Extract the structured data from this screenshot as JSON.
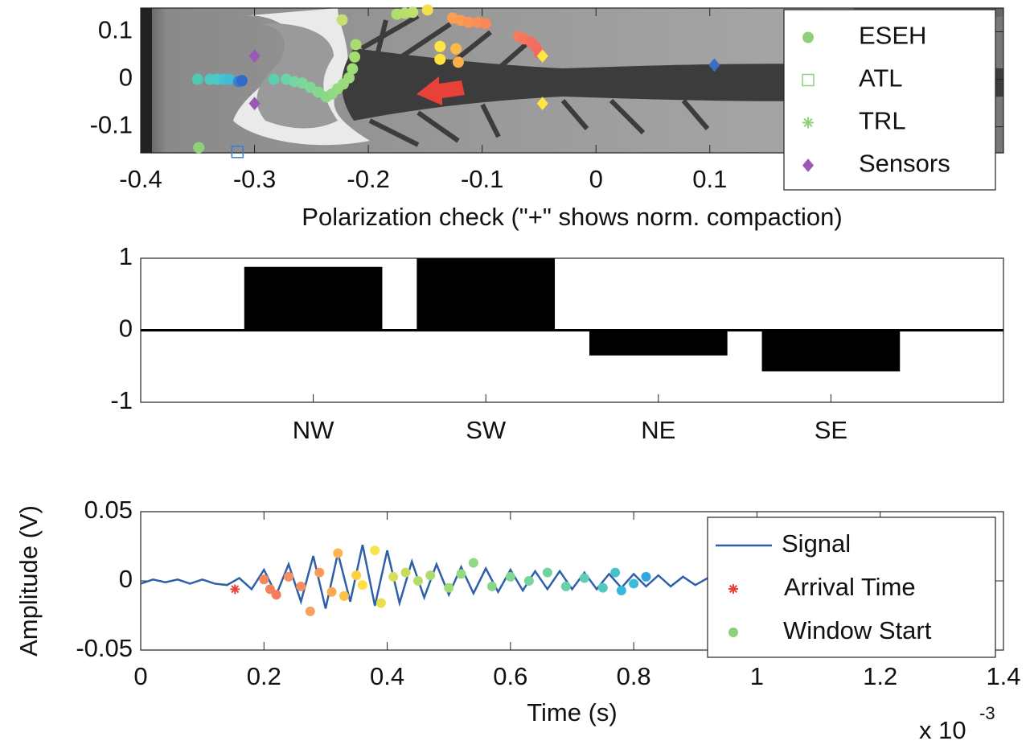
{
  "chart_data": [
    {
      "type": "scatter",
      "xlim": [
        -0.4,
        0.358
      ],
      "ylim": [
        -0.155,
        0.15
      ],
      "xticks": [
        -0.4,
        -0.3,
        -0.2,
        -0.1,
        0,
        0.1
      ],
      "yticks": [
        -0.1,
        0,
        0.1
      ],
      "legend": "upper right",
      "series": [
        {
          "name": "ESEH",
          "marker": "circle",
          "color": "#8fd17a",
          "x": [
            -0.349,
            -0.35,
            -0.339,
            -0.333,
            -0.327,
            -0.322,
            -0.314,
            -0.311,
            -0.283,
            -0.272,
            -0.265,
            -0.258,
            -0.251,
            -0.244,
            -0.237,
            -0.232,
            -0.227,
            -0.222,
            -0.217,
            -0.214,
            -0.212,
            -0.211,
            -0.223,
            -0.175,
            -0.168,
            -0.161,
            -0.148,
            -0.137,
            -0.137,
            -0.123,
            -0.121,
            -0.126,
            -0.119,
            -0.112,
            -0.104,
            -0.097,
            -0.068,
            -0.063,
            -0.057,
            -0.053,
            -0.05
          ],
          "values": [
            -0.144,
            0,
            0,
            0,
            0,
            0,
            -0.005,
            -0.003,
            0,
            0,
            -0.005,
            -0.008,
            -0.017,
            -0.027,
            -0.037,
            -0.031,
            -0.02,
            -0.01,
            0.003,
            0.022,
            0.047,
            0.073,
            0.125,
            0.137,
            0.139,
            0.141,
            0.146,
            0.069,
            0.042,
            0.064,
            0.036,
            0.129,
            0.124,
            0.12,
            0.12,
            0.117,
            0.09,
            0.085,
            0.078,
            0.068,
            0.056
          ],
          "colors": [
            "#8fd17a",
            "#4fc9b0",
            "#4fc9c0",
            "#4cc8c8",
            "#45c2d0",
            "#40bcd5",
            "#3a7fd0",
            "#2f6cc8",
            "#5ccfb0",
            "#6ad3a8",
            "#73d5a0",
            "#7ad69a",
            "#80d795",
            "#85d890",
            "#8ad88a",
            "#8fd985",
            "#94da80",
            "#98da7c",
            "#9cdb78",
            "#a0dc75",
            "#a4dc72",
            "#a8dd70",
            "#c4e070",
            "#b0de70",
            "#b8df6e",
            "#c0e06c",
            "#f4e04a",
            "#ffe640",
            "#ffe23e",
            "#fdb84a",
            "#fcae4c",
            "#fca050",
            "#fc9a52",
            "#fb9454",
            "#fa8e56",
            "#f98858",
            "#f77b5c",
            "#f6765d",
            "#f5715e",
            "#f46c5f",
            "#f36860"
          ]
        },
        {
          "name": "ATL",
          "marker": "square",
          "color": "#8fd17a",
          "x": [
            -0.315
          ],
          "values": [
            -0.153
          ],
          "colors": [
            "#3a7fd0"
          ]
        },
        {
          "name": "TRL",
          "marker": "star",
          "color": "#8fd17a",
          "x": [],
          "values": []
        },
        {
          "name": "Sensors",
          "marker": "diamond",
          "color": "#9b59b6",
          "x": [
            -0.3,
            -0.3,
            -0.047,
            -0.047,
            0.104
          ],
          "values": [
            0.049,
            -0.051,
            0.049,
            -0.051,
            0.03
          ],
          "colors": [
            "#9b59b6",
            "#9b59b6",
            "#ffe640",
            "#ffe640",
            "#3a6fc0"
          ]
        }
      ]
    },
    {
      "type": "bar",
      "title": "Polarization check (\"+\" shows norm. compaction)",
      "categories": [
        "NW",
        "SW",
        "NE",
        "SE"
      ],
      "values": [
        0.88,
        1.0,
        -0.35,
        -0.57
      ],
      "color": "#000000",
      "ylim": [
        -1,
        1
      ],
      "yticks": [
        -1,
        0,
        1
      ]
    },
    {
      "type": "line",
      "xlabel": "Time (s)",
      "ylabel": "Amplitude (V)",
      "x_multiplier": "x 10",
      "x_exponent": "-3",
      "xlim": [
        0,
        0.0014
      ],
      "ylim": [
        -0.05,
        0.05
      ],
      "xticks": [
        0,
        {
          "value": 0.0002,
          "label": "0.2"
        },
        {
          "value": 0.0004,
          "label": "0.4"
        },
        {
          "value": 0.0006,
          "label": "0.6"
        },
        {
          "value": 0.0008,
          "label": "0.8"
        },
        {
          "value": 0.001,
          "label": "1"
        },
        {
          "value": 0.0012,
          "label": "1.2"
        },
        {
          "value": 0.0014,
          "label": "1.4"
        }
      ],
      "yticks": [
        -0.05,
        0,
        0.05
      ],
      "legend": "upper right",
      "series": [
        {
          "name": "Signal",
          "marker": "line",
          "color": "#2e5fa8",
          "x": [
            0,
            2e-05,
            4e-05,
            6e-05,
            8e-05,
            0.0001,
            0.00012,
            0.00014,
            0.00016,
            0.00018,
            0.0002,
            0.00022,
            0.00024,
            0.00026,
            0.00028,
            0.0003,
            0.00032,
            0.00034,
            0.00036,
            0.00038,
            0.0004,
            0.00042,
            0.00044,
            0.00046,
            0.00048,
            0.0005,
            0.00052,
            0.00054,
            0.00056,
            0.00058,
            0.0006,
            0.00062,
            0.00064,
            0.00066,
            0.00068,
            0.0007,
            0.00072,
            0.00074,
            0.00076,
            0.00078,
            0.0008,
            0.00082,
            0.00084,
            0.00086,
            0.00088,
            0.0009,
            0.00092
          ],
          "values": [
            -0.002,
            0.001,
            -0.001,
            0.001,
            -0.002,
            0.001,
            -0.002,
            -0.003,
            0.002,
            -0.006,
            0.008,
            -0.01,
            0.012,
            -0.015,
            0.018,
            -0.02,
            0.02,
            -0.015,
            0.026,
            -0.018,
            0.022,
            -0.016,
            0.014,
            -0.012,
            0.012,
            -0.01,
            0.01,
            -0.009,
            0.009,
            -0.008,
            0.008,
            -0.007,
            0.007,
            -0.006,
            0.007,
            -0.006,
            0.006,
            -0.006,
            0.005,
            -0.005,
            0.005,
            -0.004,
            0.004,
            -0.004,
            0.003,
            -0.003,
            0.002
          ]
        },
        {
          "name": "Arrival Time",
          "marker": "star",
          "color": "#e8413a",
          "x": [
            0.000153
          ],
          "values": [
            -0.006
          ]
        },
        {
          "name": "Window Start",
          "marker": "circle",
          "color": "#8fd17a",
          "x": [
            0.0002,
            0.00021,
            0.00022,
            0.00024,
            0.00026,
            0.000275,
            0.00029,
            0.00031,
            0.00032,
            0.00033,
            0.00035,
            0.00036,
            0.00038,
            0.00039,
            0.00041,
            0.00043,
            0.00045,
            0.00047,
            0.0005,
            0.00052,
            0.00054,
            0.00057,
            0.0006,
            0.00063,
            0.00066,
            0.00069,
            0.00072,
            0.00075,
            0.00077,
            0.0008,
            0.00082,
            0.00078
          ],
          "values": [
            0.001,
            -0.006,
            -0.01,
            0.003,
            -0.004,
            -0.022,
            0.006,
            -0.008,
            0.02,
            -0.011,
            0.004,
            -0.003,
            0.022,
            -0.016,
            0.003,
            0.006,
            0,
            0.004,
            -0.005,
            0.005,
            0.013,
            -0.004,
            0.003,
            0,
            0.006,
            -0.004,
            0.002,
            -0.005,
            0.006,
            -0.002,
            0.003,
            -0.007
          ],
          "colors": [
            "#f08a5c",
            "#f5815e",
            "#f57a5e",
            "#f69060",
            "#f88e5a",
            "#f8a060",
            "#fa9a58",
            "#fbaa52",
            "#fcb44e",
            "#fdc048",
            "#fed040",
            "#ffe040",
            "#f8e34a",
            "#e6e050",
            "#d8de58",
            "#c6dd60",
            "#b8dc68",
            "#acdc70",
            "#a0db78",
            "#96da80",
            "#90d984",
            "#88d88a",
            "#80d792",
            "#78d59a",
            "#70d3a2",
            "#68d1aa",
            "#5ecdb4",
            "#52c8c0",
            "#46c2cc",
            "#3cbcd6",
            "#30a8e0",
            "#38b8da"
          ]
        }
      ]
    }
  ]
}
